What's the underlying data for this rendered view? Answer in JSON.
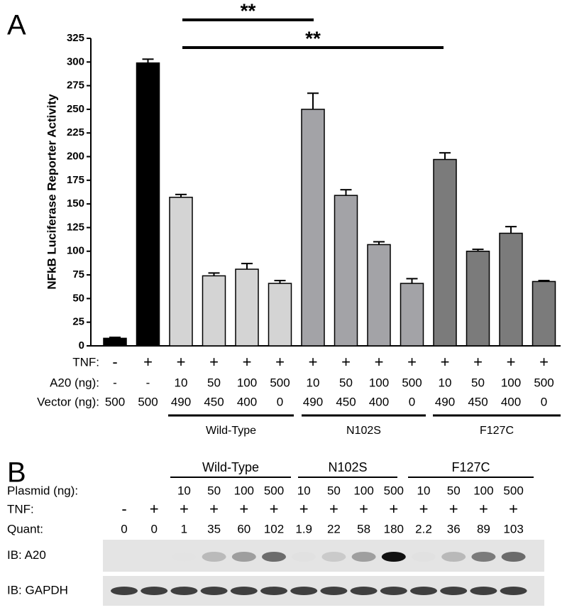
{
  "chart_data": {
    "type": "bar",
    "label": "A",
    "ylabel": "NFkB Luciferase Reporter Activity",
    "values": [
      8,
      299,
      157,
      74,
      81,
      66,
      250,
      159,
      107,
      66,
      197,
      100,
      119,
      68
    ],
    "errors": [
      1,
      4,
      3,
      3,
      6,
      3,
      17,
      6,
      3,
      5,
      7,
      2,
      7,
      1
    ],
    "colors": [
      "#000000",
      "#000000",
      "#d4d4d4",
      "#d4d4d4",
      "#d4d4d4",
      "#d4d4d4",
      "#a3a3a7",
      "#a3a3a7",
      "#a3a3a7",
      "#a3a3a7",
      "#7b7b7b",
      "#7b7b7b",
      "#7b7b7b",
      "#7b7b7b"
    ],
    "ylim": [
      0,
      325
    ],
    "yticks": [
      0,
      25,
      50,
      75,
      100,
      125,
      150,
      175,
      200,
      225,
      250,
      275,
      300,
      325
    ],
    "significance": [
      "**",
      "**"
    ],
    "table": {
      "rows": [
        {
          "label": "TNF:",
          "cells": [
            "-",
            "+",
            "+",
            "+",
            "+",
            "+",
            "+",
            "+",
            "+",
            "+",
            "+",
            "+",
            "+",
            "+"
          ]
        },
        {
          "label": "A20 (ng):",
          "cells": [
            "-",
            "-",
            "10",
            "50",
            "100",
            "500",
            "10",
            "50",
            "100",
            "500",
            "10",
            "50",
            "100",
            "500"
          ]
        },
        {
          "label": "Vector (ng):",
          "cells": [
            "500",
            "500",
            "490",
            "450",
            "400",
            "0",
            "490",
            "450",
            "400",
            "0",
            "490",
            "450",
            "400",
            "0"
          ]
        }
      ],
      "groups": [
        "Wild-Type",
        "N102S",
        "F127C"
      ]
    }
  },
  "panel_b": {
    "label": "B",
    "groups": [
      "Wild-Type",
      "N102S",
      "F127C"
    ],
    "rows": [
      {
        "label": "Plasmid (ng):",
        "cells": [
          null,
          null,
          "10",
          "50",
          "100",
          "500",
          "10",
          "50",
          "100",
          "500",
          "10",
          "50",
          "100",
          "500"
        ]
      },
      {
        "label": "TNF:",
        "cells": [
          "-",
          "+",
          "+",
          "+",
          "+",
          "+",
          "+",
          "+",
          "+",
          "+",
          "+",
          "+",
          "+",
          "+"
        ]
      },
      {
        "label": "Quant:",
        "cells": [
          0,
          0,
          1,
          35,
          60,
          102,
          1.9,
          22,
          58,
          180,
          2.2,
          36,
          89,
          103
        ]
      }
    ],
    "blots": [
      "IB: A20",
      "IB: GAPDH"
    ]
  }
}
